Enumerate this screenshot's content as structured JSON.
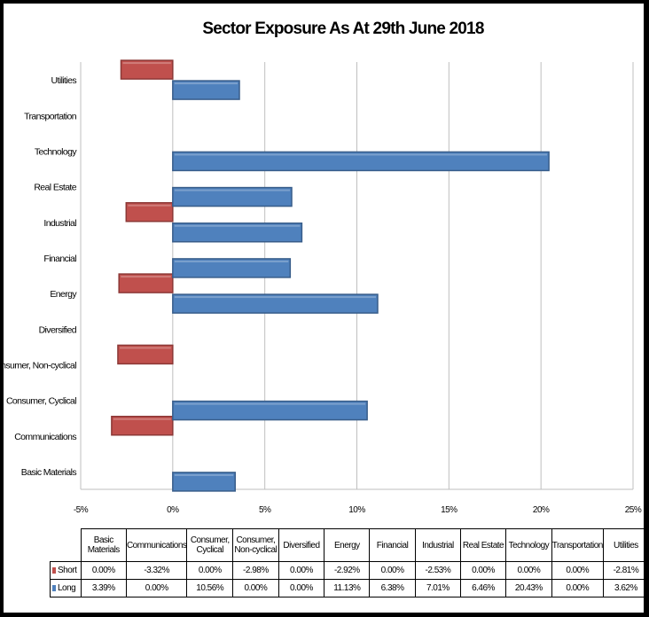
{
  "chart_data": {
    "type": "bar",
    "orientation": "horizontal",
    "title": "Sector Exposure As At 29th June 2018",
    "categories": [
      "Basic Materials",
      "Communications",
      "Consumer, Cyclical",
      "Consumer, Non-cyclical",
      "Diversified",
      "Energy",
      "Financial",
      "Industrial",
      "Real Estate",
      "Technology",
      "Transportation",
      "Utilities"
    ],
    "table_headers": [
      "Basic Materials",
      "Communications",
      "Consumer, Cyclical",
      "Consumer, Non-cyclical",
      "Diversified",
      "Energy",
      "Financial",
      "Industrial",
      "Real Estate",
      "Technology",
      "Transportation",
      "Utilities"
    ],
    "series": [
      {
        "name": "Short",
        "color": "#c0504d",
        "values": [
          0.0,
          -3.32,
          0.0,
          -2.98,
          0.0,
          -2.92,
          0.0,
          -2.53,
          0.0,
          0.0,
          0.0,
          -2.81
        ],
        "labels": [
          "0.00%",
          "-3.32%",
          "0.00%",
          "-2.98%",
          "0.00%",
          "-2.92%",
          "0.00%",
          "-2.53%",
          "0.00%",
          "0.00%",
          "0.00%",
          "-2.81%"
        ]
      },
      {
        "name": "Long",
        "color": "#4f81bd",
        "values": [
          3.39,
          0.0,
          10.56,
          0.0,
          0.0,
          11.13,
          6.38,
          7.01,
          6.46,
          20.43,
          0.0,
          3.62
        ],
        "labels": [
          "3.39%",
          "0.00%",
          "10.56%",
          "0.00%",
          "0.00%",
          "11.13%",
          "6.38%",
          "7.01%",
          "6.46%",
          "20.43%",
          "0.00%",
          "3.62%"
        ]
      }
    ],
    "xlim": [
      -5,
      25
    ],
    "xticks": [
      "-5%",
      "0%",
      "5%",
      "10%",
      "15%",
      "20%",
      "25%"
    ],
    "grid": true,
    "legend": "data-table"
  }
}
